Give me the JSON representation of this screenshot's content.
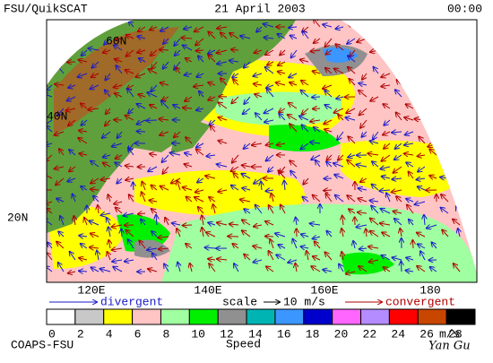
{
  "header": {
    "source": "FSU/QuikSCAT",
    "date": "21 April 2003",
    "time": "00:00"
  },
  "map": {
    "lat_labels": [
      "60N",
      "40N",
      "20N"
    ],
    "lon_labels": [
      "120E",
      "140E",
      "160E",
      "180"
    ]
  },
  "legend": {
    "divergent": "divergent",
    "scale": "scale",
    "scale_value": "10 m/s",
    "convergent": "convergent"
  },
  "colorbar": {
    "labels": [
      "0",
      "2",
      "4",
      "6",
      "8",
      "10",
      "12",
      "14",
      "16",
      "18",
      "20",
      "22",
      "24",
      "26",
      "28"
    ],
    "unit": "m/s",
    "title": "Speed",
    "colors": [
      "#ffffff",
      "#c8c8c8",
      "#ffff00",
      "#ffc4c4",
      "#a0ffa0",
      "#00f000",
      "#909090",
      "#00b4b4",
      "#3c96ff",
      "#0000cc",
      "#ff66ff",
      "#b48cff",
      "#ff0000",
      "#c84600",
      "#000000"
    ]
  },
  "footer": {
    "institution": "COAPS-FSU",
    "author": "Yan Gu"
  }
}
